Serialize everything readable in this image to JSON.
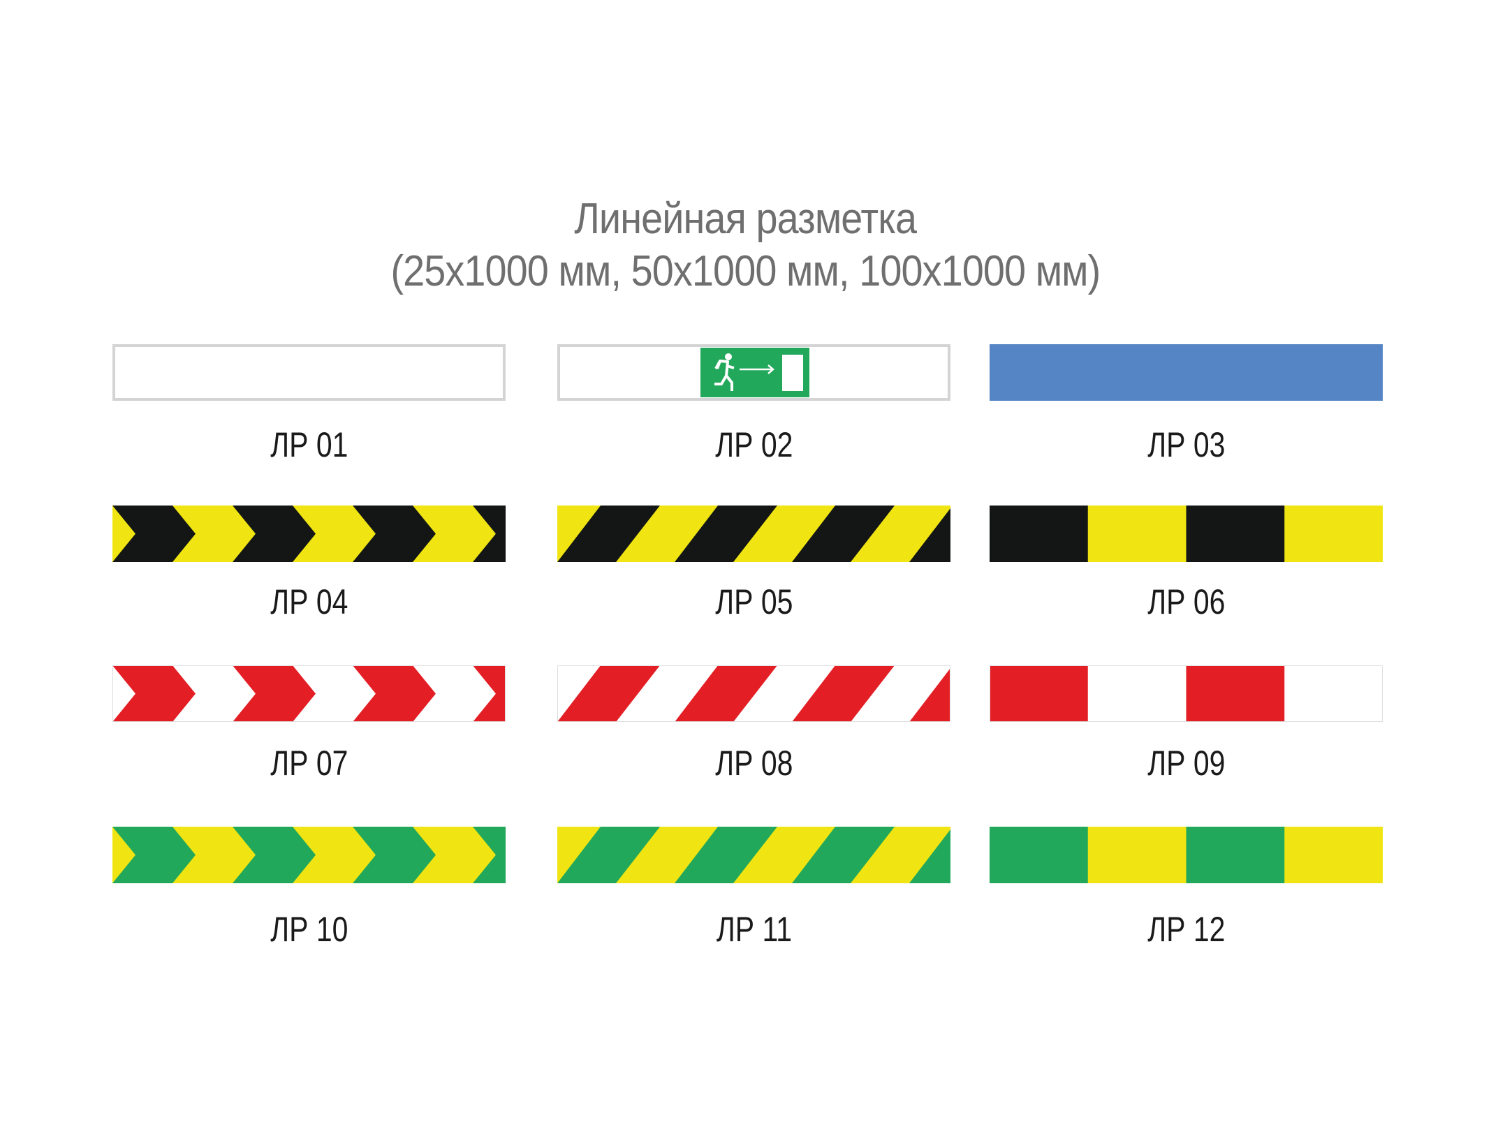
{
  "header": {
    "title": "Линейная разметка",
    "subtitle": "(25x1000 мм, 50x1000 мм, 100x1000 мм)"
  },
  "colors": {
    "yellow": "#f0e512",
    "black": "#141615",
    "red": "#e31e24",
    "green": "#22a85a",
    "blue": "#5585c5",
    "white": "#ffffff",
    "border": "#d4d4d4",
    "title": "#6f6f6f"
  },
  "items": [
    {
      "label": "ЛР 01",
      "pattern": "outlined",
      "colors": [
        "white"
      ]
    },
    {
      "label": "ЛР 02",
      "pattern": "exit-sign",
      "colors": [
        "white",
        "green"
      ],
      "icon": "running-man-exit-icon"
    },
    {
      "label": "ЛР 03",
      "pattern": "solid",
      "colors": [
        "blue"
      ]
    },
    {
      "label": "ЛР 04",
      "pattern": "chevron",
      "colors": [
        "yellow",
        "black"
      ]
    },
    {
      "label": "ЛР 05",
      "pattern": "diagonal",
      "colors": [
        "yellow",
        "black"
      ]
    },
    {
      "label": "ЛР 06",
      "pattern": "blocks",
      "colors": [
        "black",
        "yellow"
      ]
    },
    {
      "label": "ЛР 07",
      "pattern": "chevron",
      "colors": [
        "white",
        "red"
      ]
    },
    {
      "label": "ЛР 08",
      "pattern": "diagonal",
      "colors": [
        "white",
        "red"
      ]
    },
    {
      "label": "ЛР 09",
      "pattern": "blocks",
      "colors": [
        "red",
        "white"
      ]
    },
    {
      "label": "ЛР 10",
      "pattern": "chevron",
      "colors": [
        "yellow",
        "green"
      ]
    },
    {
      "label": "ЛР 11",
      "pattern": "diagonal",
      "colors": [
        "yellow",
        "green"
      ]
    },
    {
      "label": "ЛР 12",
      "pattern": "blocks",
      "colors": [
        "green",
        "yellow"
      ]
    }
  ]
}
